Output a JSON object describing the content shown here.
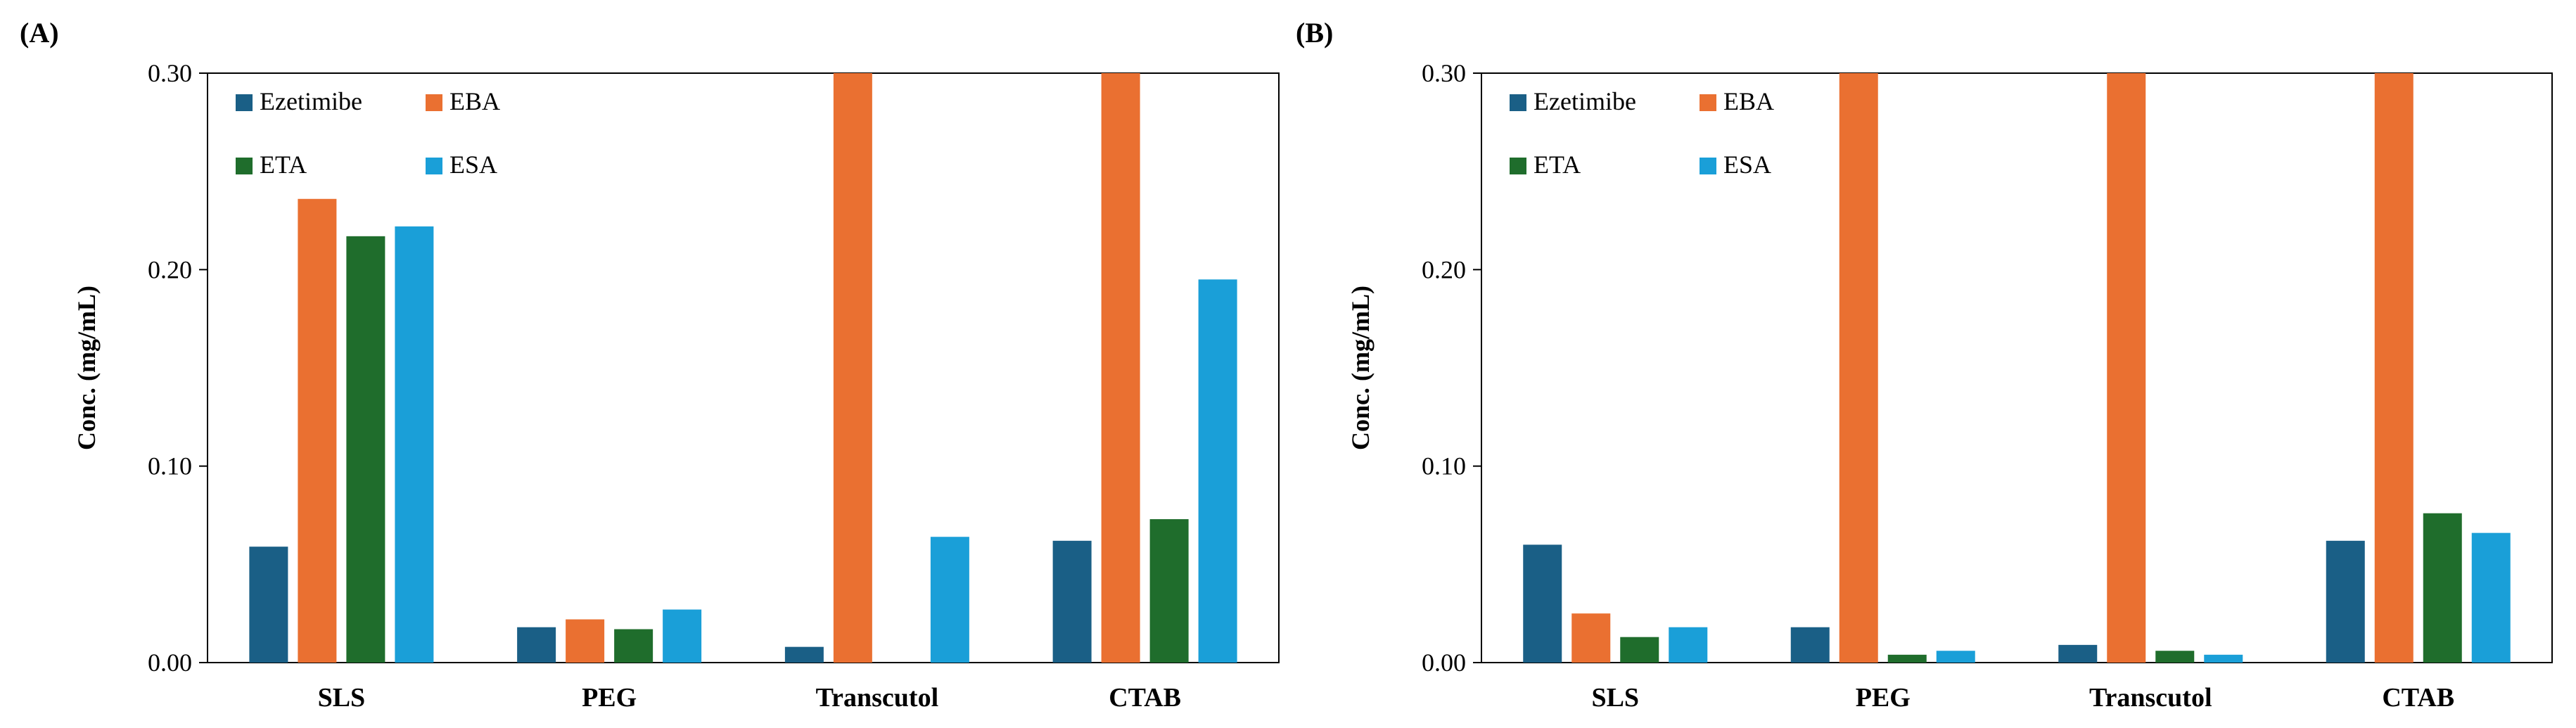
{
  "colors": {
    "Ezetimibe": "#1a5f86",
    "EBA": "#ea7031",
    "ETA": "#1f6d2c",
    "ESA": "#1a9fd8",
    "axis": "#000000"
  },
  "chart_data": [
    {
      "type": "bar",
      "panel_label": "(A)",
      "ylabel": "Conc. (mg/mL)",
      "xlabel": "",
      "ylim": [
        0,
        0.3
      ],
      "yticks": [
        "0.00",
        "0.10",
        "0.20",
        "0.30"
      ],
      "ytick_values": [
        0,
        0.1,
        0.2,
        0.3
      ],
      "categories": [
        "SLS",
        "PEG",
        "Transcutol",
        "CTAB"
      ],
      "legend_position": "top-left",
      "grid": false,
      "series": [
        {
          "name": "Ezetimibe",
          "values": [
            0.059,
            0.018,
            0.008,
            0.062
          ]
        },
        {
          "name": "EBA",
          "values": [
            0.236,
            0.022,
            0.3,
            0.3
          ]
        },
        {
          "name": "ETA",
          "values": [
            0.217,
            0.017,
            0.0,
            0.073
          ]
        },
        {
          "name": "ESA",
          "values": [
            0.222,
            0.027,
            0.064,
            0.195
          ]
        }
      ]
    },
    {
      "type": "bar",
      "panel_label": "(B)",
      "ylabel": "Conc. (mg/mL)",
      "xlabel": "",
      "ylim": [
        0,
        0.3
      ],
      "yticks": [
        "0.00",
        "0.10",
        "0.20",
        "0.30"
      ],
      "ytick_values": [
        0,
        0.1,
        0.2,
        0.3
      ],
      "categories": [
        "SLS",
        "PEG",
        "Transcutol",
        "CTAB"
      ],
      "legend_position": "top-left",
      "grid": false,
      "series": [
        {
          "name": "Ezetimibe",
          "values": [
            0.06,
            0.018,
            0.009,
            0.062
          ]
        },
        {
          "name": "EBA",
          "values": [
            0.025,
            0.3,
            0.3,
            0.3
          ]
        },
        {
          "name": "ETA",
          "values": [
            0.013,
            0.004,
            0.006,
            0.076
          ]
        },
        {
          "name": "ESA",
          "values": [
            0.018,
            0.006,
            0.004,
            0.066
          ]
        }
      ]
    }
  ]
}
